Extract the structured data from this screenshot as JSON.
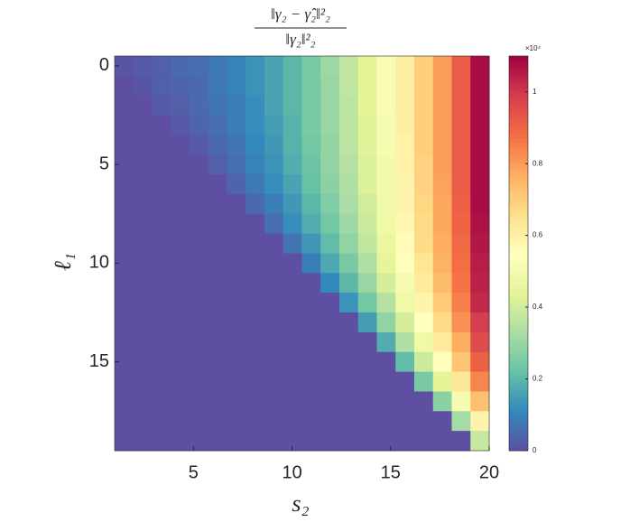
{
  "chart_data": {
    "type": "heatmap",
    "title": {
      "numerator": "‖γ₂ − γ̂₂‖²₂",
      "denominator": "‖γ₂‖²₂"
    },
    "x_label": "s₂",
    "y_label": "ℓ₁",
    "xlim": [
      1,
      20
    ],
    "xticks": [
      5,
      10,
      15,
      20
    ],
    "ylim": [
      -0.5,
      19.5
    ],
    "yticks": [
      0,
      5,
      10,
      15
    ],
    "clim": [
      0,
      1.1
    ],
    "cticks": [
      0,
      0.2,
      0.4,
      0.6,
      0.8,
      1
    ],
    "cbar_exponent": "×10⁴",
    "colormap": [
      "#5e4fa2",
      "#3288bd",
      "#66c2a5",
      "#abdda4",
      "#e6f598",
      "#ffffbf",
      "#fee08b",
      "#fdae61",
      "#f46d43",
      "#d53e4f",
      "#9e0142"
    ],
    "values": [
      [
        0.01,
        0.02,
        0.03,
        0.05,
        0.06,
        0.08,
        0.1,
        0.13,
        0.16,
        0.2,
        0.25,
        0.31,
        0.37,
        0.44,
        0.52,
        0.61,
        0.7,
        0.8,
        0.92,
        1.08
      ],
      [
        0,
        0.01,
        0.03,
        0.04,
        0.05,
        0.08,
        0.1,
        0.13,
        0.16,
        0.2,
        0.25,
        0.3,
        0.37,
        0.44,
        0.52,
        0.61,
        0.7,
        0.8,
        0.92,
        1.08
      ],
      [
        0,
        0,
        0.02,
        0.03,
        0.05,
        0.07,
        0.09,
        0.12,
        0.16,
        0.2,
        0.25,
        0.3,
        0.36,
        0.44,
        0.52,
        0.61,
        0.7,
        0.8,
        0.92,
        1.08
      ],
      [
        0,
        0,
        0,
        0.02,
        0.04,
        0.06,
        0.09,
        0.12,
        0.15,
        0.19,
        0.25,
        0.3,
        0.36,
        0.43,
        0.51,
        0.61,
        0.7,
        0.8,
        0.92,
        1.08
      ],
      [
        0,
        0,
        0,
        0,
        0.02,
        0.05,
        0.07,
        0.11,
        0.14,
        0.19,
        0.24,
        0.29,
        0.36,
        0.43,
        0.51,
        0.6,
        0.7,
        0.8,
        0.92,
        1.08
      ],
      [
        0,
        0,
        0,
        0,
        0,
        0.03,
        0.06,
        0.1,
        0.13,
        0.18,
        0.23,
        0.29,
        0.35,
        0.42,
        0.5,
        0.6,
        0.69,
        0.8,
        0.92,
        1.08
      ],
      [
        0,
        0,
        0,
        0,
        0,
        0,
        0.04,
        0.08,
        0.12,
        0.16,
        0.22,
        0.28,
        0.34,
        0.42,
        0.5,
        0.59,
        0.69,
        0.79,
        0.92,
        1.08
      ],
      [
        0,
        0,
        0,
        0,
        0,
        0,
        0,
        0.05,
        0.09,
        0.14,
        0.2,
        0.26,
        0.33,
        0.4,
        0.49,
        0.59,
        0.68,
        0.78,
        0.91,
        1.08
      ],
      [
        0,
        0,
        0,
        0,
        0,
        0,
        0,
        0,
        0.06,
        0.12,
        0.18,
        0.24,
        0.31,
        0.39,
        0.48,
        0.58,
        0.67,
        0.78,
        0.9,
        1.07
      ],
      [
        0,
        0,
        0,
        0,
        0,
        0,
        0,
        0,
        0,
        0.07,
        0.14,
        0.21,
        0.29,
        0.37,
        0.46,
        0.56,
        0.67,
        0.77,
        0.89,
        1.06
      ],
      [
        0,
        0,
        0,
        0,
        0,
        0,
        0,
        0,
        0,
        0,
        0.09,
        0.17,
        0.25,
        0.34,
        0.44,
        0.54,
        0.64,
        0.76,
        0.88,
        1.05
      ],
      [
        0,
        0,
        0,
        0,
        0,
        0,
        0,
        0,
        0,
        0,
        0,
        0.11,
        0.2,
        0.3,
        0.41,
        0.51,
        0.62,
        0.74,
        0.87,
        1.04
      ],
      [
        0,
        0,
        0,
        0,
        0,
        0,
        0,
        0,
        0,
        0,
        0,
        0,
        0.13,
        0.24,
        0.35,
        0.48,
        0.59,
        0.71,
        0.85,
        1.03
      ],
      [
        0,
        0,
        0,
        0,
        0,
        0,
        0,
        0,
        0,
        0,
        0,
        0,
        0,
        0.15,
        0.29,
        0.41,
        0.55,
        0.67,
        0.82,
        0.99
      ],
      [
        0,
        0,
        0,
        0,
        0,
        0,
        0,
        0,
        0,
        0,
        0,
        0,
        0,
        0,
        0.18,
        0.34,
        0.48,
        0.62,
        0.77,
        0.96
      ],
      [
        0,
        0,
        0,
        0,
        0,
        0,
        0,
        0,
        0,
        0,
        0,
        0,
        0,
        0,
        0,
        0.21,
        0.39,
        0.54,
        0.72,
        0.91
      ],
      [
        0,
        0,
        0,
        0,
        0,
        0,
        0,
        0,
        0,
        0,
        0,
        0,
        0,
        0,
        0,
        0,
        0.25,
        0.44,
        0.63,
        0.84
      ],
      [
        0,
        0,
        0,
        0,
        0,
        0,
        0,
        0,
        0,
        0,
        0,
        0,
        0,
        0,
        0,
        0,
        0,
        0.28,
        0.51,
        0.73
      ],
      [
        0,
        0,
        0,
        0,
        0,
        0,
        0,
        0,
        0,
        0,
        0,
        0,
        0,
        0,
        0,
        0,
        0,
        0,
        0.32,
        0.59
      ],
      [
        0,
        0,
        0,
        0,
        0,
        0,
        0,
        0,
        0,
        0,
        0,
        0,
        0,
        0,
        0,
        0,
        0,
        0,
        0,
        0.38
      ]
    ]
  }
}
